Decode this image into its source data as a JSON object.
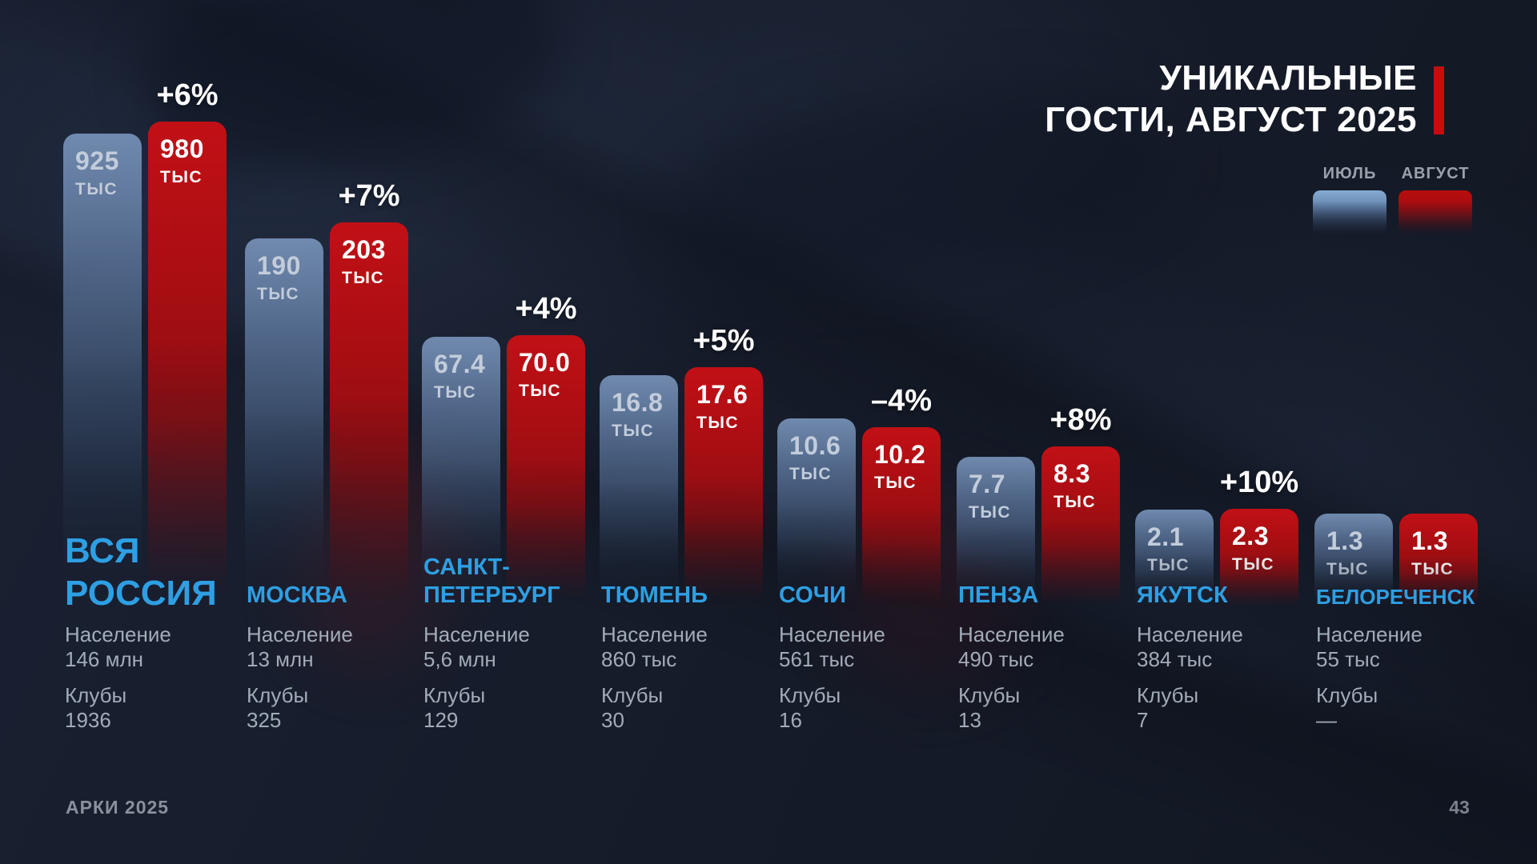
{
  "header": {
    "title_lines": [
      "УНИКАЛЬНЫЕ",
      "ГОСТИ, АВГУСТ 2025"
    ]
  },
  "legend": {
    "july_label": "ИЮЛЬ",
    "august_label": "АВГУСТ"
  },
  "footer": {
    "brand": "АРКИ 2025",
    "page_number": "43"
  },
  "colors": {
    "background": "#161c2a",
    "accent_red": "#c80c0c",
    "city_name_blue": "#2e9fe3",
    "bar_july_top": "#7590b5",
    "bar_august_top": "#c11016",
    "muted_text": "#a2acb8"
  },
  "chart_data": {
    "type": "bar",
    "title": "УНИКАЛЬНЫЕ ГОСТИ, АВГУСТ 2025",
    "value_unit": "тыс",
    "legend": [
      "ИЮЛЬ",
      "АВГУСТ"
    ],
    "legend_position": "top-right",
    "grid": false,
    "categories": [
      "ВСЯ РОССИЯ",
      "МОСКВА",
      "САНКТ-ПЕТЕРБУРГ",
      "ТЮМЕНЬ",
      "СОЧИ",
      "ПЕНЗА",
      "ЯКУТСК",
      "БЕЛОРЕЧЕНСК"
    ],
    "series": [
      {
        "name": "ИЮЛЬ",
        "values": [
          925,
          190,
          67.4,
          16.8,
          10.6,
          7.7,
          2.1,
          1.3
        ]
      },
      {
        "name": "АВГУСТ",
        "values": [
          980,
          203,
          70.0,
          17.6,
          10.2,
          8.3,
          2.3,
          1.3
        ]
      }
    ],
    "change_labels": [
      "+6%",
      "+7%",
      "+4%",
      "+5%",
      "–4%",
      "+8%",
      "+10%",
      ""
    ],
    "cities": [
      {
        "name_lines": [
          "ВСЯ",
          "РОССИЯ"
        ],
        "july_value": "925",
        "august_value": "980",
        "unit": "ТЫС",
        "change": "+6%",
        "population_label": "Население",
        "population": "146 млн",
        "clubs_label": "Клубы",
        "clubs": "1936"
      },
      {
        "name_lines": [
          "МОСКВА"
        ],
        "july_value": "190",
        "august_value": "203",
        "unit": "ТЫС",
        "change": "+7%",
        "population_label": "Население",
        "population": "13 млн",
        "clubs_label": "Клубы",
        "clubs": "325"
      },
      {
        "name_lines": [
          "САНКТ-",
          "ПЕТЕРБУРГ"
        ],
        "july_value": "67.4",
        "august_value": "70.0",
        "unit": "ТЫС",
        "change": "+4%",
        "population_label": "Население",
        "population": "5,6 млн",
        "clubs_label": "Клубы",
        "clubs": "129"
      },
      {
        "name_lines": [
          "ТЮМЕНЬ"
        ],
        "july_value": "16.8",
        "august_value": "17.6",
        "unit": "ТЫС",
        "change": "+5%",
        "population_label": "Население",
        "population": "860 тыс",
        "clubs_label": "Клубы",
        "clubs": "30"
      },
      {
        "name_lines": [
          "СОЧИ"
        ],
        "july_value": "10.6",
        "august_value": "10.2",
        "unit": "ТЫС",
        "change": "–4%",
        "population_label": "Население",
        "population": "561 тыс",
        "clubs_label": "Клубы",
        "clubs": "16"
      },
      {
        "name_lines": [
          "ПЕНЗА"
        ],
        "july_value": "7.7",
        "august_value": "8.3",
        "unit": "ТЫС",
        "change": "+8%",
        "population_label": "Население",
        "population": "490 тыс",
        "clubs_label": "Клубы",
        "clubs": "13"
      },
      {
        "name_lines": [
          "ЯКУТСК"
        ],
        "july_value": "2.1",
        "august_value": "2.3",
        "unit": "ТЫС",
        "change": "+10%",
        "population_label": "Население",
        "population": "384 тыс",
        "clubs_label": "Клубы",
        "clubs": "7"
      },
      {
        "name_lines": [
          "БЕЛОРЕЧЕНСК"
        ],
        "july_value": "1.3",
        "august_value": "1.3",
        "unit": "ТЫС",
        "change": "",
        "population_label": "Население",
        "population": "55 тыс",
        "clubs_label": "Клубы",
        "clubs": "—"
      }
    ]
  }
}
